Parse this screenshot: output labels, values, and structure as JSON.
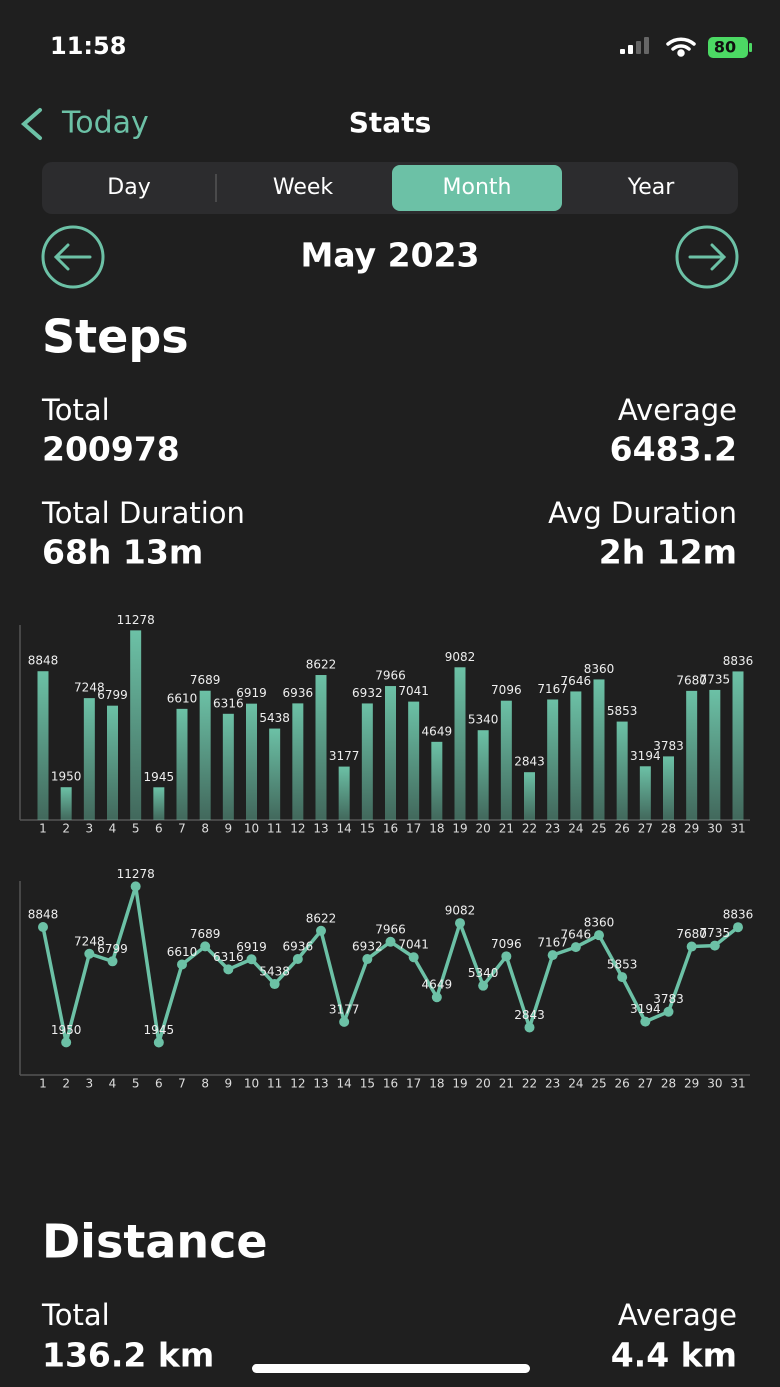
{
  "status_bar": {
    "time": "11:58",
    "battery": "80"
  },
  "nav": {
    "back": "Today",
    "title": "Stats"
  },
  "tabs": [
    "Day",
    "Week",
    "Month",
    "Year"
  ],
  "selected_tab": 2,
  "period": "May 2023",
  "steps": {
    "heading": "Steps",
    "total_label": "Total",
    "total": 200978,
    "average_label": "Average",
    "average": 6483.2,
    "total_duration_label": "Total Duration",
    "total_duration": "68h 13m",
    "avg_duration_label": "Avg Duration",
    "avg_duration": "2h 12m"
  },
  "chart_data": [
    {
      "type": "bar",
      "categories": [
        "1",
        "2",
        "3",
        "4",
        "5",
        "6",
        "7",
        "8",
        "9",
        "10",
        "11",
        "12",
        "13",
        "14",
        "15",
        "16",
        "17",
        "18",
        "19",
        "20",
        "21",
        "22",
        "23",
        "24",
        "25",
        "26",
        "27",
        "28",
        "29",
        "30",
        "31"
      ],
      "values": [
        8848,
        1950,
        7248,
        6799,
        11278,
        1945,
        6610,
        7689,
        6316,
        6919,
        5438,
        6936,
        8622,
        3177,
        6932,
        7966,
        7041,
        4649,
        9082,
        5340,
        7096,
        2843,
        7167,
        7646,
        8360,
        5853,
        3194,
        3783,
        7680,
        7735,
        8836
      ],
      "color": "#6cc1a6",
      "ylim": [
        0,
        11300
      ]
    },
    {
      "type": "line",
      "categories": [
        "1",
        "2",
        "3",
        "4",
        "5",
        "6",
        "7",
        "8",
        "9",
        "10",
        "11",
        "12",
        "13",
        "14",
        "15",
        "16",
        "17",
        "18",
        "19",
        "20",
        "21",
        "22",
        "23",
        "24",
        "25",
        "26",
        "27",
        "28",
        "29",
        "30",
        "31"
      ],
      "values": [
        8848,
        1950,
        7248,
        6799,
        11278,
        1945,
        6610,
        7689,
        6316,
        6919,
        5438,
        6936,
        8622,
        3177,
        6932,
        7966,
        7041,
        4649,
        9082,
        5340,
        7096,
        2843,
        7167,
        7646,
        8360,
        5853,
        3194,
        3783,
        7680,
        7735,
        8836
      ],
      "color": "#6cc1a6",
      "ylim": [
        0,
        11300
      ]
    }
  ],
  "distance": {
    "heading": "Distance",
    "total_label": "Total",
    "total": "136.2 km",
    "average_label": "Average",
    "average": "4.4 km"
  }
}
